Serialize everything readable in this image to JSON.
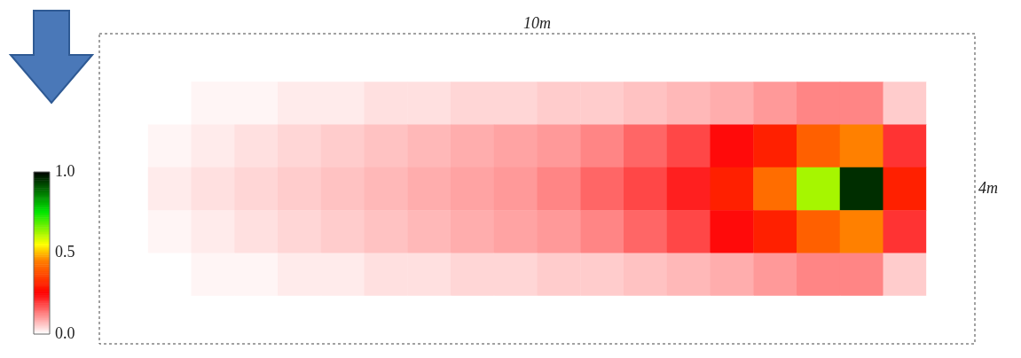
{
  "chart_data": {
    "type": "heatmap",
    "annotations": [
      "10m",
      "4m"
    ],
    "categories": [
      null,
      null,
      null,
      null,
      null,
      null,
      null,
      null,
      null,
      null,
      null,
      null,
      null,
      null,
      null,
      null,
      null,
      null,
      null,
      null
    ],
    "y_categories": [
      null,
      null,
      null,
      null,
      null,
      null,
      null
    ],
    "cells": [
      [
        0,
        0,
        0,
        0,
        0,
        0,
        0,
        0,
        0,
        0,
        0,
        0,
        0,
        0,
        0,
        0,
        0,
        0,
        0,
        0
      ],
      [
        0,
        0,
        0.01,
        0.01,
        0.02,
        0.02,
        0.03,
        0.03,
        0.04,
        0.04,
        0.05,
        0.05,
        0.06,
        0.07,
        0.08,
        0.1,
        0.12,
        0.12,
        0.05,
        0
      ],
      [
        0,
        0.01,
        0.02,
        0.03,
        0.04,
        0.05,
        0.06,
        0.07,
        0.08,
        0.09,
        0.1,
        0.12,
        0.15,
        0.18,
        0.24,
        0.3,
        0.4,
        0.45,
        0.2,
        0
      ],
      [
        0,
        0.02,
        0.03,
        0.04,
        0.05,
        0.06,
        0.07,
        0.08,
        0.09,
        0.1,
        0.12,
        0.15,
        0.18,
        0.22,
        0.3,
        0.42,
        0.62,
        0.95,
        0.3,
        0
      ],
      [
        0,
        0.01,
        0.02,
        0.03,
        0.04,
        0.05,
        0.06,
        0.07,
        0.08,
        0.09,
        0.1,
        0.12,
        0.15,
        0.18,
        0.24,
        0.3,
        0.4,
        0.45,
        0.2,
        0
      ],
      [
        0,
        0,
        0.01,
        0.01,
        0.02,
        0.02,
        0.03,
        0.03,
        0.04,
        0.04,
        0.05,
        0.05,
        0.06,
        0.07,
        0.08,
        0.1,
        0.12,
        0.12,
        0.05,
        0
      ],
      [
        0,
        0,
        0,
        0,
        0,
        0,
        0,
        0,
        0,
        0,
        0,
        0,
        0,
        0,
        0,
        0,
        0,
        0,
        0,
        0
      ]
    ],
    "clim": [
      0,
      1
    ],
    "cticks": [
      {
        "value": 0,
        "label": "0.0"
      },
      {
        "value": 0.5,
        "label": "0.5"
      },
      {
        "value": 1,
        "label": "1.0"
      }
    ]
  }
}
